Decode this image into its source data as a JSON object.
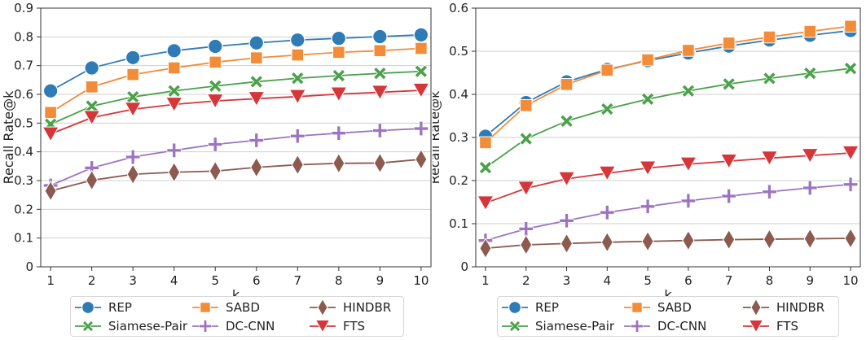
{
  "chart_data": [
    {
      "type": "line",
      "title": "",
      "xlabel": "k",
      "ylabel": "Recall Rate@k",
      "x": [
        1,
        2,
        3,
        4,
        5,
        6,
        7,
        8,
        9,
        10
      ],
      "xticks": [
        "1",
        "2",
        "3",
        "4",
        "5",
        "6",
        "7",
        "8",
        "9",
        "10"
      ],
      "ylim": [
        0,
        0.9
      ],
      "yticks": [
        "0",
        "0.1",
        "0.2",
        "0.3",
        "0.4",
        "0.5",
        "0.6",
        "0.7",
        "0.8",
        "0.9"
      ],
      "grid": "horizontal",
      "legend_position": "bottom",
      "series": [
        {
          "name": "REP",
          "color": "#2f7bb6",
          "marker": "circle",
          "values": [
            0.612,
            0.692,
            0.728,
            0.752,
            0.767,
            0.779,
            0.789,
            0.795,
            0.801,
            0.807
          ]
        },
        {
          "name": "SABD",
          "color": "#f28c38",
          "marker": "square",
          "values": [
            0.537,
            0.626,
            0.669,
            0.692,
            0.712,
            0.727,
            0.737,
            0.746,
            0.752,
            0.76
          ]
        },
        {
          "name": "Siamese-Pair",
          "color": "#4aa14a",
          "marker": "x",
          "values": [
            0.496,
            0.559,
            0.591,
            0.612,
            0.629,
            0.644,
            0.656,
            0.665,
            0.673,
            0.68
          ]
        },
        {
          "name": "DC-CNN",
          "color": "#9c74c2",
          "marker": "plus",
          "values": [
            0.283,
            0.344,
            0.382,
            0.405,
            0.426,
            0.44,
            0.455,
            0.465,
            0.474,
            0.481
          ]
        },
        {
          "name": "HINDBR",
          "color": "#8c5a4e",
          "marker": "diamond",
          "values": [
            0.264,
            0.301,
            0.322,
            0.329,
            0.333,
            0.346,
            0.355,
            0.36,
            0.361,
            0.374
          ]
        },
        {
          "name": "FTS",
          "color": "#d6363a",
          "marker": "triangle-down",
          "values": [
            0.462,
            0.519,
            0.548,
            0.565,
            0.577,
            0.585,
            0.592,
            0.601,
            0.607,
            0.614
          ]
        }
      ]
    },
    {
      "type": "line",
      "title": "",
      "xlabel": "k",
      "ylabel": "Recall Rate@k",
      "x": [
        1,
        2,
        3,
        4,
        5,
        6,
        7,
        8,
        9,
        10
      ],
      "xticks": [
        "1",
        "2",
        "3",
        "4",
        "5",
        "6",
        "7",
        "8",
        "9",
        "10"
      ],
      "ylim": [
        0,
        0.6
      ],
      "yticks": [
        "0",
        "0.1",
        "0.2",
        "0.3",
        "0.4",
        "0.5",
        "0.6"
      ],
      "grid": "horizontal",
      "legend_position": "bottom",
      "series": [
        {
          "name": "REP",
          "color": "#2f7bb6",
          "marker": "circle",
          "values": [
            0.303,
            0.381,
            0.429,
            0.458,
            0.478,
            0.496,
            0.512,
            0.526,
            0.537,
            0.548
          ]
        },
        {
          "name": "SABD",
          "color": "#f28c38",
          "marker": "square",
          "values": [
            0.288,
            0.374,
            0.423,
            0.456,
            0.48,
            0.502,
            0.519,
            0.533,
            0.546,
            0.558
          ]
        },
        {
          "name": "Siamese-Pair",
          "color": "#4aa14a",
          "marker": "x",
          "values": [
            0.23,
            0.297,
            0.338,
            0.366,
            0.389,
            0.408,
            0.424,
            0.437,
            0.449,
            0.46
          ]
        },
        {
          "name": "DC-CNN",
          "color": "#9c74c2",
          "marker": "plus",
          "values": [
            0.061,
            0.088,
            0.107,
            0.126,
            0.14,
            0.153,
            0.164,
            0.174,
            0.183,
            0.191
          ]
        },
        {
          "name": "HINDBR",
          "color": "#8c5a4e",
          "marker": "diamond",
          "values": [
            0.043,
            0.051,
            0.054,
            0.057,
            0.059,
            0.061,
            0.063,
            0.064,
            0.065,
            0.066
          ]
        },
        {
          "name": "FTS",
          "color": "#d6363a",
          "marker": "triangle-down",
          "values": [
            0.148,
            0.182,
            0.204,
            0.217,
            0.229,
            0.238,
            0.245,
            0.252,
            0.258,
            0.264
          ]
        }
      ]
    }
  ],
  "legend": {
    "entries": [
      {
        "name": "REP",
        "color": "#2f7bb6",
        "marker": "circle"
      },
      {
        "name": "SABD",
        "color": "#f28c38",
        "marker": "square"
      },
      {
        "name": "HINDBR",
        "color": "#8c5a4e",
        "marker": "diamond"
      },
      {
        "name": "Siamese-Pair",
        "color": "#4aa14a",
        "marker": "x"
      },
      {
        "name": "DC-CNN",
        "color": "#9c74c2",
        "marker": "plus"
      },
      {
        "name": "FTS",
        "color": "#d6363a",
        "marker": "triangle-down"
      }
    ]
  }
}
